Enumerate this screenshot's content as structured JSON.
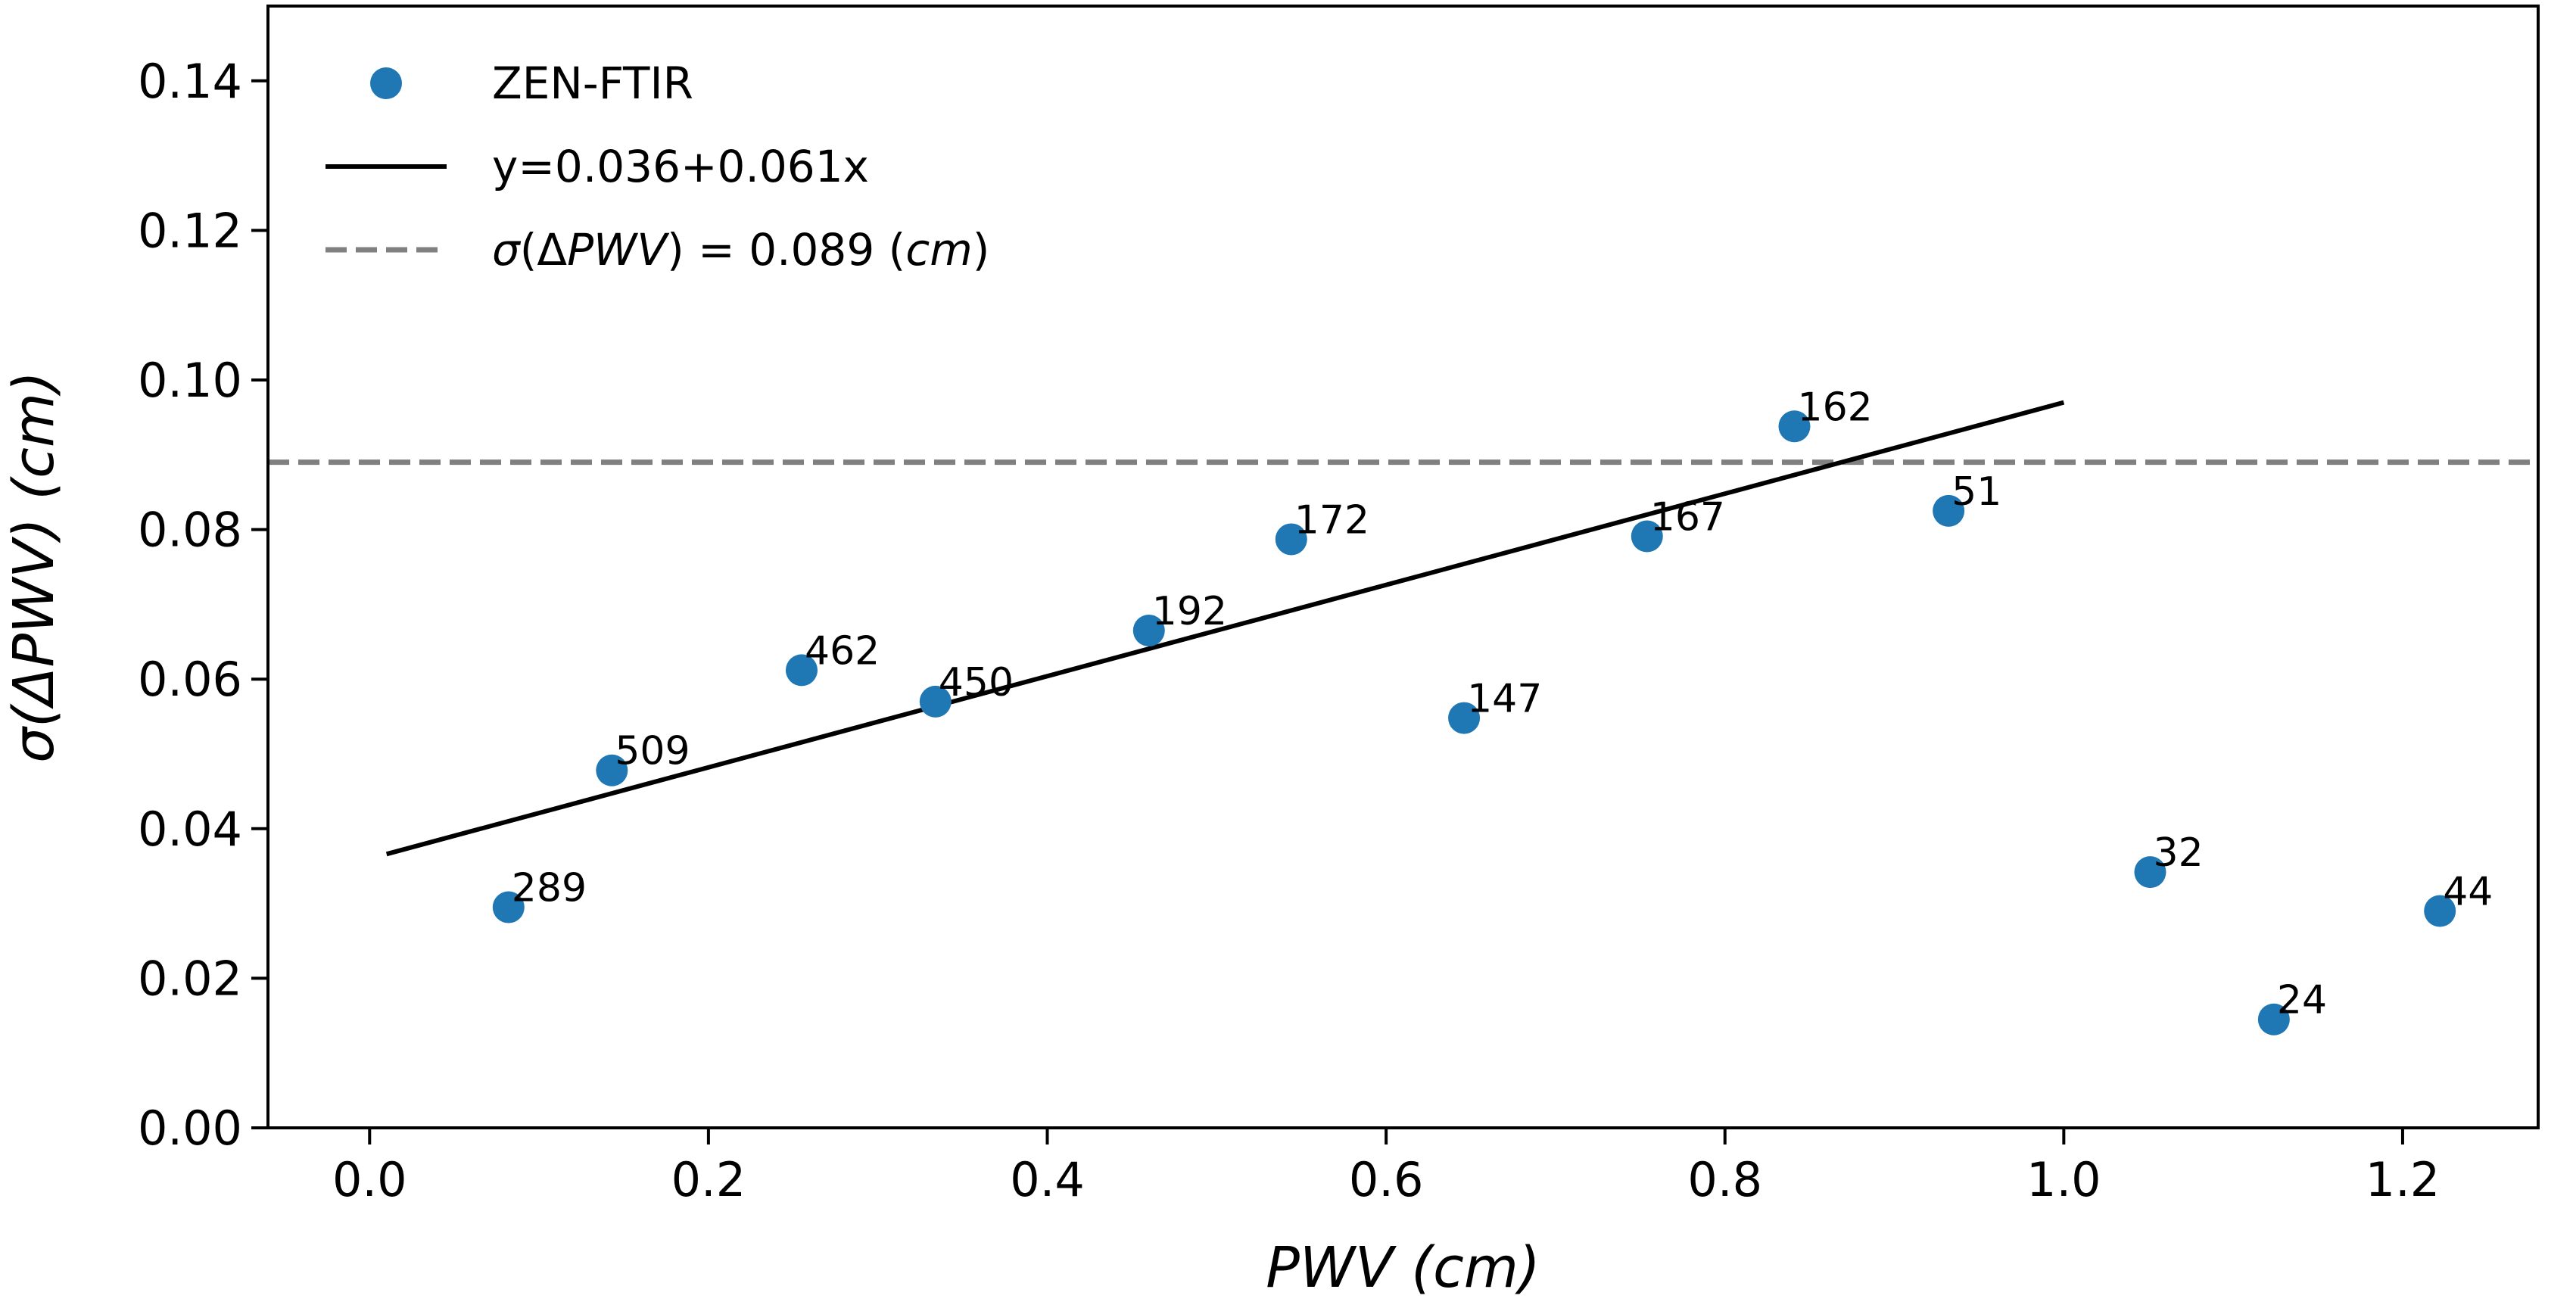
{
  "chart_data": {
    "type": "scatter",
    "title": "",
    "xlabel": "PWV (cm)",
    "ylabel": "σ(ΔPWV) (cm)",
    "xlim": [
      -0.06,
      1.28
    ],
    "ylim": [
      0.0,
      0.15
    ],
    "xticks": [
      0.0,
      0.2,
      0.4,
      0.6,
      0.8,
      1.0,
      1.2
    ],
    "xtick_labels": [
      "0.0",
      "0.2",
      "0.4",
      "0.6",
      "0.8",
      "1.0",
      "1.2"
    ],
    "yticks": [
      0.0,
      0.02,
      0.04,
      0.06,
      0.08,
      0.1,
      0.12,
      0.14
    ],
    "ytick_labels": [
      "0.00",
      "0.02",
      "0.04",
      "0.06",
      "0.08",
      "0.10",
      "0.12",
      "0.14"
    ],
    "grid": false,
    "legend_position": "top-left",
    "series": [
      {
        "name": "ZEN-FTIR",
        "kind": "scatter",
        "color": "#1f77b4",
        "points": [
          {
            "x": 0.082,
            "y": 0.0295,
            "label": "289"
          },
          {
            "x": 0.143,
            "y": 0.0478,
            "label": "509"
          },
          {
            "x": 0.255,
            "y": 0.0612,
            "label": "462"
          },
          {
            "x": 0.334,
            "y": 0.057,
            "label": "450"
          },
          {
            "x": 0.46,
            "y": 0.0665,
            "label": "192"
          },
          {
            "x": 0.544,
            "y": 0.0787,
            "label": "172"
          },
          {
            "x": 0.646,
            "y": 0.0548,
            "label": "147"
          },
          {
            "x": 0.754,
            "y": 0.0791,
            "label": "167"
          },
          {
            "x": 0.841,
            "y": 0.0938,
            "label": "162"
          },
          {
            "x": 0.932,
            "y": 0.0825,
            "label": "51"
          },
          {
            "x": 1.051,
            "y": 0.0342,
            "label": "32"
          },
          {
            "x": 1.124,
            "y": 0.0145,
            "label": "24"
          },
          {
            "x": 1.222,
            "y": 0.029,
            "label": "44"
          }
        ]
      },
      {
        "name": "y=0.036+0.061x",
        "kind": "line",
        "color": "#000000",
        "intercept": 0.036,
        "slope": 0.061,
        "x_range": [
          0.01,
          1.0
        ]
      },
      {
        "name": "σ(ΔPWV) = 0.089 (cm)",
        "kind": "hline",
        "color": "#808080",
        "y": 0.089
      }
    ],
    "legend": [
      {
        "text": "ZEN-FTIR"
      },
      {
        "text": "y=0.036+0.061x"
      },
      {
        "text_parts": [
          "σ",
          "(Δ",
          "PWV",
          ") = 0.089 (",
          "cm",
          ")"
        ]
      }
    ]
  }
}
